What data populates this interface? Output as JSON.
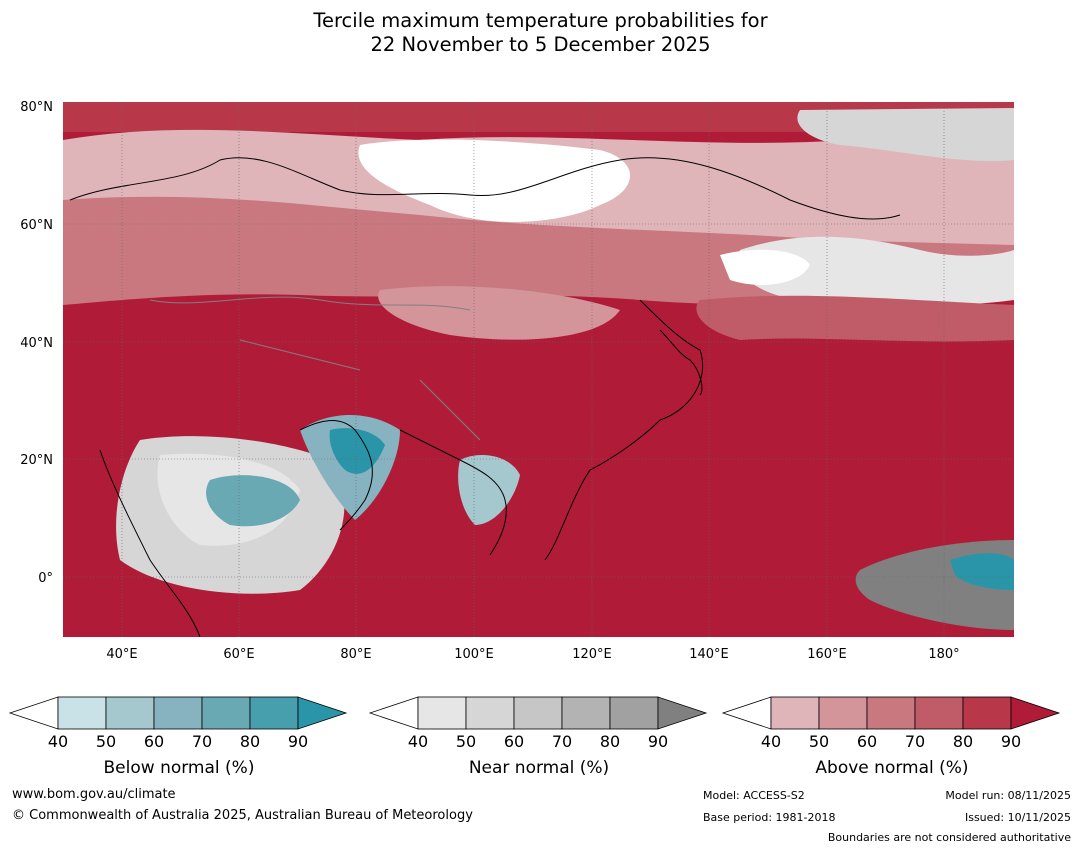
{
  "title": {
    "line1": "Tercile maximum temperature probabilities for",
    "line2": "22 November to 5 December 2025"
  },
  "map": {
    "lat_labels": [
      "80°N",
      "60°N",
      "40°N",
      "20°N",
      "0°"
    ],
    "lon_labels": [
      "40°E",
      "60°E",
      "80°E",
      "100°E",
      "120°E",
      "140°E",
      "160°E",
      "180°"
    ]
  },
  "colorbars": {
    "below": {
      "label": "Below normal (%)",
      "ticks": [
        "40",
        "50",
        "60",
        "70",
        "80",
        "90"
      ],
      "colors": [
        "#c9e2e8",
        "#a5c8cf",
        "#86b3bf",
        "#69a9b4",
        "#479fad",
        "#2a94a8"
      ]
    },
    "near": {
      "label": "Near normal (%)",
      "ticks": [
        "40",
        "50",
        "60",
        "70",
        "80",
        "90"
      ],
      "colors": [
        "#e6e6e6",
        "#d6d6d6",
        "#c6c6c6",
        "#b3b3b3",
        "#a1a1a1",
        "#808080"
      ]
    },
    "above": {
      "label": "Above normal (%)",
      "ticks": [
        "40",
        "50",
        "60",
        "70",
        "80",
        "90"
      ],
      "colors": [
        "#e0b5b9",
        "#d3949a",
        "#c97880",
        "#c05c67",
        "#b8384a",
        "#b01c38"
      ]
    }
  },
  "footer": {
    "website": "www.bom.gov.au/climate",
    "copyright": "© Commonwealth of Australia 2025, Australian Bureau of Meteorology",
    "model": "Model: ACCESS-S2",
    "base_period": "Base period: 1981-2018",
    "model_run": "Model run: 08/11/2025",
    "issued": "Issued: 10/11/2025",
    "disclaimer": "Boundaries are not considered authoritative"
  }
}
